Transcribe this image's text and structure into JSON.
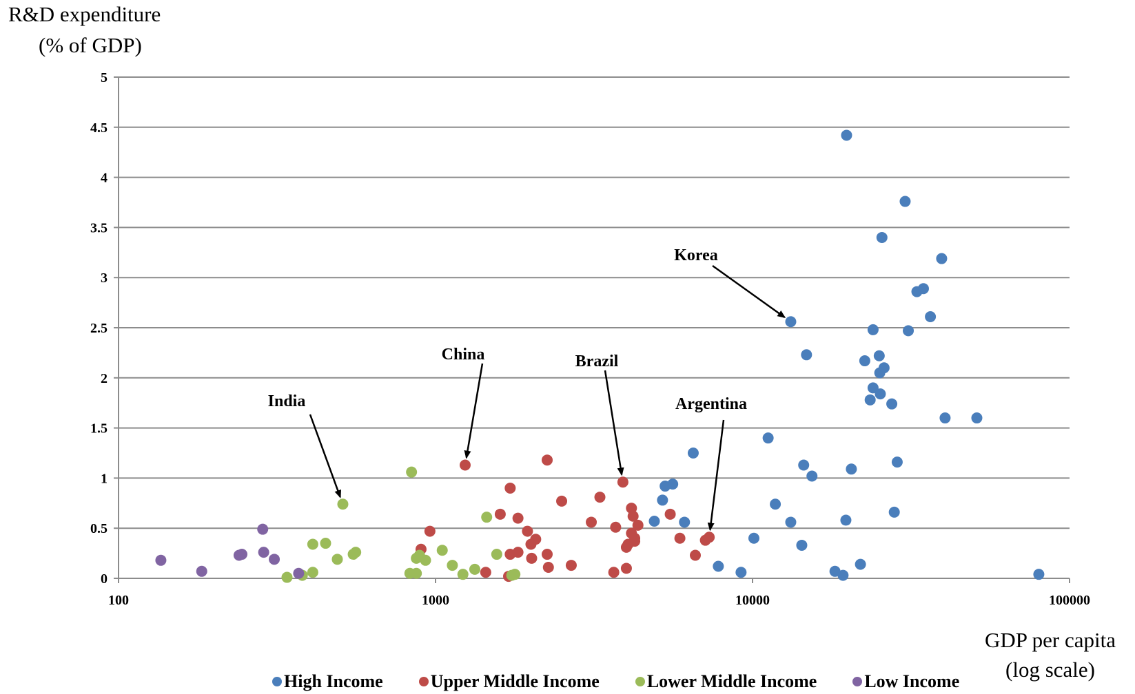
{
  "chart_data": {
    "type": "scatter",
    "ylabel": [
      "R&D expenditure",
      "(% of GDP)"
    ],
    "xlabel": [
      "GDP per capita",
      "(log scale)"
    ],
    "x_scale": "log",
    "xlim": [
      100,
      100000
    ],
    "ylim": [
      0,
      5
    ],
    "x_ticks": [
      "100",
      "1000",
      "10000",
      "100000"
    ],
    "y_ticks": [
      "0",
      "0.5",
      "1",
      "1.5",
      "2",
      "2.5",
      "3",
      "3.5",
      "4",
      "4.5",
      "5"
    ],
    "grid": "horizontal",
    "legend_position": "bottom",
    "series": [
      {
        "name": "High Income",
        "color": "#4a7ebb",
        "points": [
          [
            19800,
            4.42
          ],
          [
            30300,
            3.76
          ],
          [
            25600,
            3.4
          ],
          [
            39500,
            3.19
          ],
          [
            34600,
            2.89
          ],
          [
            33000,
            2.86
          ],
          [
            36400,
            2.61
          ],
          [
            13200,
            2.56
          ],
          [
            24000,
            2.48
          ],
          [
            31000,
            2.47
          ],
          [
            14800,
            2.23
          ],
          [
            25100,
            2.22
          ],
          [
            22600,
            2.17
          ],
          [
            26000,
            2.1
          ],
          [
            25200,
            2.05
          ],
          [
            24000,
            1.9
          ],
          [
            23500,
            1.78
          ],
          [
            25300,
            1.84
          ],
          [
            27500,
            1.74
          ],
          [
            40500,
            1.6
          ],
          [
            51000,
            1.6
          ],
          [
            11200,
            1.4
          ],
          [
            6500,
            1.25
          ],
          [
            14500,
            1.13
          ],
          [
            28600,
            1.16
          ],
          [
            20500,
            1.09
          ],
          [
            15400,
            1.02
          ],
          [
            5600,
            0.94
          ],
          [
            5300,
            0.92
          ],
          [
            5200,
            0.78
          ],
          [
            11800,
            0.74
          ],
          [
            28000,
            0.66
          ],
          [
            13200,
            0.56
          ],
          [
            19700,
            0.58
          ],
          [
            4900,
            0.57
          ],
          [
            6100,
            0.56
          ],
          [
            10100,
            0.4
          ],
          [
            14300,
            0.33
          ],
          [
            7800,
            0.12
          ],
          [
            9200,
            0.06
          ],
          [
            21900,
            0.14
          ],
          [
            18200,
            0.07
          ],
          [
            19300,
            0.03
          ],
          [
            80000,
            0.04
          ]
        ]
      },
      {
        "name": "Upper Middle Income",
        "color": "#be4b48",
        "points": [
          [
            1240,
            1.13
          ],
          [
            2250,
            1.18
          ],
          [
            1720,
            0.9
          ],
          [
            3900,
            0.96
          ],
          [
            3300,
            0.81
          ],
          [
            2500,
            0.77
          ],
          [
            1600,
            0.64
          ],
          [
            1820,
            0.6
          ],
          [
            4150,
            0.7
          ],
          [
            4200,
            0.62
          ],
          [
            4350,
            0.53
          ],
          [
            3100,
            0.56
          ],
          [
            3700,
            0.51
          ],
          [
            5500,
            0.64
          ],
          [
            4150,
            0.45
          ],
          [
            4250,
            0.4
          ],
          [
            4250,
            0.37
          ],
          [
            4050,
            0.34
          ],
          [
            4000,
            0.31
          ],
          [
            5900,
            0.4
          ],
          [
            7100,
            0.38
          ],
          [
            7300,
            0.41
          ],
          [
            960,
            0.47
          ],
          [
            1950,
            0.47
          ],
          [
            2070,
            0.39
          ],
          [
            2000,
            0.34
          ],
          [
            900,
            0.29
          ],
          [
            1720,
            0.24
          ],
          [
            1820,
            0.26
          ],
          [
            2250,
            0.24
          ],
          [
            2010,
            0.2
          ],
          [
            2680,
            0.13
          ],
          [
            2270,
            0.11
          ],
          [
            4000,
            0.1
          ],
          [
            1440,
            0.06
          ],
          [
            3650,
            0.06
          ],
          [
            6600,
            0.23
          ],
          [
            1700,
            0.02
          ]
        ]
      },
      {
        "name": "Lower Middle Income",
        "color": "#9bbb59",
        "points": [
          [
            840,
            1.06
          ],
          [
            510,
            0.74
          ],
          [
            1450,
            0.61
          ],
          [
            410,
            0.34
          ],
          [
            450,
            0.35
          ],
          [
            1050,
            0.28
          ],
          [
            560,
            0.26
          ],
          [
            550,
            0.24
          ],
          [
            1560,
            0.24
          ],
          [
            490,
            0.19
          ],
          [
            890,
            0.23
          ],
          [
            870,
            0.2
          ],
          [
            930,
            0.18
          ],
          [
            1130,
            0.13
          ],
          [
            1330,
            0.09
          ],
          [
            410,
            0.06
          ],
          [
            830,
            0.05
          ],
          [
            870,
            0.05
          ],
          [
            1220,
            0.04
          ],
          [
            1780,
            0.04
          ],
          [
            1740,
            0.03
          ],
          [
            380,
            0.03
          ],
          [
            340,
            0.01
          ]
        ]
      },
      {
        "name": "Low Income",
        "color": "#8064a2",
        "points": [
          [
            285,
            0.49
          ],
          [
            136,
            0.18
          ],
          [
            183,
            0.07
          ],
          [
            240,
            0.23
          ],
          [
            245,
            0.24
          ],
          [
            287,
            0.26
          ],
          [
            310,
            0.19
          ],
          [
            370,
            0.05
          ]
        ]
      }
    ],
    "annotations": [
      {
        "label": "Korea",
        "target": [
          13200,
          2.56
        ]
      },
      {
        "label": "China",
        "target": [
          1240,
          1.13
        ]
      },
      {
        "label": "Brazil",
        "target": [
          3900,
          0.96
        ]
      },
      {
        "label": "India",
        "target": [
          510,
          0.74
        ]
      },
      {
        "label": "Argentina",
        "target": [
          7300,
          0.41
        ]
      }
    ]
  }
}
